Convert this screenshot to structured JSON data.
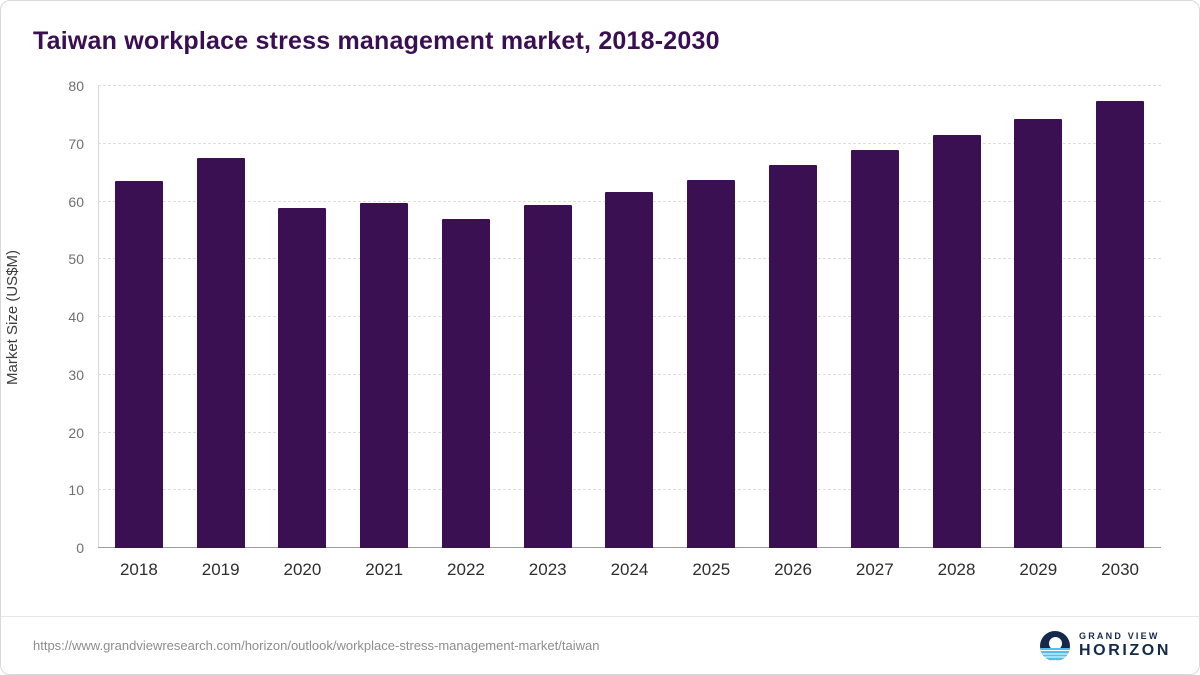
{
  "title": "Taiwan workplace stress management market, 2018-2030",
  "footer": {
    "source_url": "https://www.grandviewresearch.com/horizon/outlook/workplace-stress-management-market/taiwan",
    "logo": {
      "line1": "GRAND VIEW",
      "line2": "HORIZON",
      "icon": "sunrise-horizon-icon"
    }
  },
  "colors": {
    "bar": "#3b1053",
    "title": "#3a0f52",
    "grid": "#dedede",
    "axis_text": "#6f6f6f"
  },
  "chart_data": {
    "type": "bar",
    "title": "Taiwan workplace stress management market, 2018-2030",
    "categories": [
      "2018",
      "2019",
      "2020",
      "2021",
      "2022",
      "2023",
      "2024",
      "2025",
      "2026",
      "2027",
      "2028",
      "2029",
      "2030"
    ],
    "values": [
      63.5,
      67.5,
      58.8,
      59.7,
      57.0,
      59.4,
      61.6,
      63.8,
      66.3,
      69.0,
      71.5,
      74.3,
      77.4
    ],
    "xlabel": "",
    "ylabel": "Market Size (US$M)",
    "ylim": [
      0,
      80
    ],
    "ytick_step": 10,
    "grid": "horizontal-dashed",
    "legend": "none"
  }
}
